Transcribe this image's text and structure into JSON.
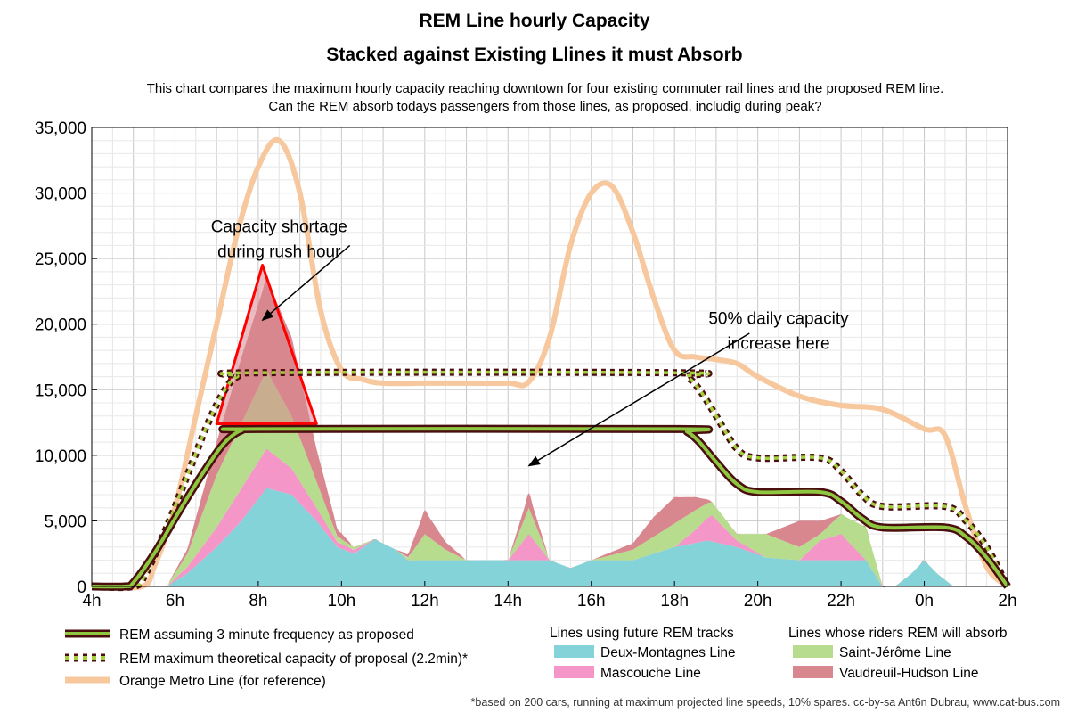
{
  "chart_data": {
    "type": "area",
    "title_line1": "REM Line hourly Capacity",
    "title_line2": "Stacked against Existing Llines it must Absorb",
    "subtitle_line1": "This chart compares the maximum hourly capacity reaching downtown for four existing commuter rail lines and the proposed REM line.",
    "subtitle_line2": "Can the REM absorb todays passengers from those lines, as proposed, includig during peak?",
    "xlabel": "",
    "ylabel": "",
    "x_ticks": [
      {
        "x": 4,
        "label": "4h"
      },
      {
        "x": 6,
        "label": "6h"
      },
      {
        "x": 8,
        "label": "8h"
      },
      {
        "x": 10,
        "label": "10h"
      },
      {
        "x": 12,
        "label": "12h"
      },
      {
        "x": 14,
        "label": "14h"
      },
      {
        "x": 16,
        "label": "16h"
      },
      {
        "x": 18,
        "label": "18h"
      },
      {
        "x": 20,
        "label": "20h"
      },
      {
        "x": 22,
        "label": "22h"
      },
      {
        "x": 24,
        "label": "0h"
      },
      {
        "x": 26,
        "label": "2h"
      }
    ],
    "y_ticks": [
      {
        "y": 0,
        "label": "0"
      },
      {
        "y": 5000,
        "label": "5,000"
      },
      {
        "y": 10000,
        "label": "10,000"
      },
      {
        "y": 15000,
        "label": "15,000"
      },
      {
        "y": 20000,
        "label": "20,000"
      },
      {
        "y": 25000,
        "label": "25,000"
      },
      {
        "y": 30000,
        "label": "30,000"
      },
      {
        "y": 35000,
        "label": "35,000"
      }
    ],
    "xlim": [
      4,
      26
    ],
    "ylim": [
      0,
      35000
    ],
    "grid": true,
    "colors": {
      "deux_montagnes": "#84d3d8",
      "mascouche": "#f496c8",
      "saint_jerome": "#b7dc8e",
      "vaudreuil": "#d9878f",
      "orange_metro": "#f7c89d",
      "rem_fill": "#8dc63f",
      "rem_edge": "#4a0e0e",
      "rem_max_dash": "#a4cf3a",
      "shortage": "#ff0000"
    },
    "series": [
      {
        "name": "Deux-Montagnes Line",
        "role": "stack",
        "x": [
          4,
          5.8,
          6.3,
          7,
          7.6,
          8.2,
          8.8,
          9.4,
          9.9,
          10.3,
          10.8,
          11.3,
          11.6,
          12,
          13,
          14,
          15,
          15.5,
          16,
          17,
          18,
          18.8,
          19.5,
          20.2,
          21,
          22,
          22.3,
          22.6,
          23,
          23.3,
          23.7,
          24,
          24.3,
          24.7,
          25,
          26
        ],
        "values": [
          0,
          0,
          1000,
          3000,
          5000,
          7500,
          7000,
          5000,
          3000,
          2500,
          3600,
          2800,
          2000,
          2000,
          2000,
          2000,
          2000,
          1400,
          2000,
          2000,
          3000,
          3500,
          3000,
          2200,
          2000,
          2000,
          2000,
          2000,
          0,
          0,
          1000,
          2000,
          1000,
          0,
          0,
          0
        ]
      },
      {
        "name": "Mascouche Line",
        "role": "stack",
        "x": [
          4,
          5.8,
          6.3,
          7,
          7.6,
          8.2,
          8.8,
          9.4,
          9.9,
          10.3,
          10.8,
          11.3,
          11.6,
          12,
          12.5,
          13,
          14,
          14.5,
          15,
          15.5,
          16,
          17,
          18,
          18.5,
          18.9,
          19.5,
          20.2,
          21,
          21.5,
          22,
          22.3,
          22.6,
          23,
          23.3,
          23.7,
          24,
          24.3,
          24.7,
          25,
          26
        ],
        "values": [
          0,
          0,
          500,
          1500,
          2500,
          3000,
          2000,
          1000,
          400,
          300,
          0,
          0,
          0,
          0,
          0,
          0,
          0,
          2000,
          0,
          0,
          0,
          0,
          0,
          1000,
          2000,
          500,
          0,
          0,
          1500,
          2000,
          1000,
          0,
          0,
          0,
          0,
          0,
          0,
          0,
          0,
          0
        ]
      },
      {
        "name": "Saint-Jérôme Line",
        "role": "stack",
        "x": [
          4,
          5.8,
          6.3,
          7,
          7.6,
          8.2,
          8.8,
          9.4,
          9.9,
          10.3,
          10.8,
          11.3,
          11.6,
          12,
          12.5,
          13,
          14,
          14.5,
          15,
          15.5,
          16,
          17,
          18,
          18.5,
          18.9,
          19.5,
          20.2,
          21,
          21.5,
          22,
          22.3,
          22.6,
          23,
          23.3,
          23.7,
          24,
          24.3,
          24.7,
          25,
          26
        ],
        "values": [
          0,
          0,
          1000,
          4000,
          5000,
          6000,
          4000,
          2000,
          400,
          200,
          0,
          0,
          200,
          2000,
          800,
          0,
          0,
          2000,
          0,
          0,
          0,
          800,
          1800,
          1500,
          1000,
          500,
          1800,
          1000,
          500,
          1500,
          2000,
          2500,
          0,
          0,
          0,
          0,
          0,
          0,
          0,
          0
        ]
      },
      {
        "name": "Vaudreuil-Hudson Line",
        "role": "stack",
        "x": [
          4,
          5.8,
          6.3,
          7,
          7.6,
          8.2,
          8.8,
          9.4,
          9.9,
          10.3,
          10.8,
          11.3,
          11.6,
          12,
          12.5,
          13,
          14,
          14.5,
          15,
          15.5,
          16,
          17,
          17.5,
          18,
          18.5,
          18.9,
          19.5,
          20.2,
          21,
          21.5,
          22,
          22.3,
          22.6,
          23,
          23.3,
          23.7,
          24,
          24.3,
          24.7,
          25,
          26
        ],
        "values": [
          0,
          0,
          400,
          2500,
          5000,
          7000,
          6000,
          2500,
          600,
          0,
          0,
          0,
          300,
          1800,
          600,
          0,
          0,
          1100,
          0,
          0,
          0,
          500,
          1500,
          2000,
          1000,
          0,
          0,
          0,
          2000,
          1000,
          0,
          0,
          0,
          0,
          0,
          0,
          0,
          0,
          0,
          0,
          0
        ]
      },
      {
        "name": "Orange Metro Line (for reference)",
        "role": "line",
        "x": [
          4,
          5.2,
          5.5,
          6,
          6.5,
          7,
          7.5,
          8,
          8.5,
          9,
          9.5,
          10,
          10.5,
          11,
          12,
          13,
          14,
          14.5,
          15,
          15.5,
          16,
          16.5,
          17,
          17.5,
          18,
          18.5,
          19,
          19.5,
          20,
          21,
          22,
          23,
          24,
          24.5,
          25,
          25.5,
          26
        ],
        "values": [
          0,
          0,
          1500,
          6000,
          13000,
          20000,
          27000,
          32000,
          34000,
          30000,
          21000,
          16500,
          15800,
          15500,
          15500,
          15500,
          15500,
          15600,
          19000,
          26000,
          30000,
          30500,
          27000,
          22000,
          18000,
          17500,
          17300,
          17000,
          16000,
          14500,
          13800,
          13500,
          12000,
          11500,
          6000,
          1500,
          0
        ]
      },
      {
        "name": "REM assuming 3 minute frequency as proposed",
        "role": "line",
        "x": [
          4,
          4.8,
          5,
          5.5,
          6,
          6.5,
          7,
          7.3,
          7.6,
          8,
          18,
          18.3,
          18.6,
          19,
          19.5,
          20,
          21.5,
          22,
          22.5,
          23,
          24.5,
          25,
          25.5,
          26
        ],
        "values": [
          0,
          0,
          300,
          2500,
          5200,
          7800,
          10200,
          11300,
          11900,
          12000,
          12000,
          11800,
          11000,
          9500,
          7800,
          7200,
          7200,
          6500,
          5200,
          4500,
          4500,
          3800,
          2200,
          0
        ]
      },
      {
        "name": "REM maximum theoretical capacity of proposal (2.2min)*",
        "role": "line",
        "x": [
          4,
          5,
          5.3,
          5.8,
          6.3,
          6.8,
          7.2,
          7.5,
          8,
          18,
          18.3,
          18.6,
          19,
          19.5,
          20,
          21.5,
          22,
          22.5,
          23,
          24.5,
          25,
          25.5,
          26
        ],
        "values": [
          0,
          0,
          1000,
          4500,
          8500,
          12500,
          15000,
          16000,
          16300,
          16300,
          16000,
          15000,
          13000,
          10500,
          9800,
          9800,
          8800,
          7000,
          6100,
          6100,
          5000,
          3000,
          0
        ]
      }
    ],
    "shortage_triangle": [
      [
        7,
        12400
      ],
      [
        8.1,
        24500
      ],
      [
        9.4,
        12400
      ]
    ],
    "annotations": [
      {
        "line1": "Capacity shortage",
        "line2": "during rush hour",
        "text_at": [
          8.5,
          27000
        ],
        "arrow_from": [
          10.2,
          26000
        ],
        "arrow_to": [
          8.1,
          20300
        ]
      },
      {
        "line1": "50% daily capacity",
        "line2": "increase here",
        "text_at": [
          20.5,
          20000
        ],
        "arrow_from": [
          19.8,
          19300
        ],
        "arrow_to": [
          14.5,
          9200
        ]
      }
    ],
    "legend_left": [
      {
        "label": "REM assuming 3 minute frequency as proposed",
        "style": "rem"
      },
      {
        "label": "REM maximum theoretical capacity of proposal (2.2min)*",
        "style": "rem_max"
      },
      {
        "label": "Orange Metro Line (for reference)",
        "style": "orange"
      }
    ],
    "legend_mid_title": "Lines using future REM tracks",
    "legend_mid": [
      {
        "label": "Deux-Montagnes Line",
        "color": "#84d3d8"
      },
      {
        "label": "Mascouche Line",
        "color": "#f496c8"
      }
    ],
    "legend_right_title": "Lines whose riders REM will absorb",
    "legend_right": [
      {
        "label": "Saint-Jérôme Line",
        "color": "#b7dc8e"
      },
      {
        "label": "Vaudreuil-Hudson Line",
        "color": "#d9878f"
      }
    ],
    "footnote": "*based on 200 cars, running at maximum projected line speeds, 10% spares. cc-by-sa Ant6n Dubrau, www.cat-bus.com"
  }
}
